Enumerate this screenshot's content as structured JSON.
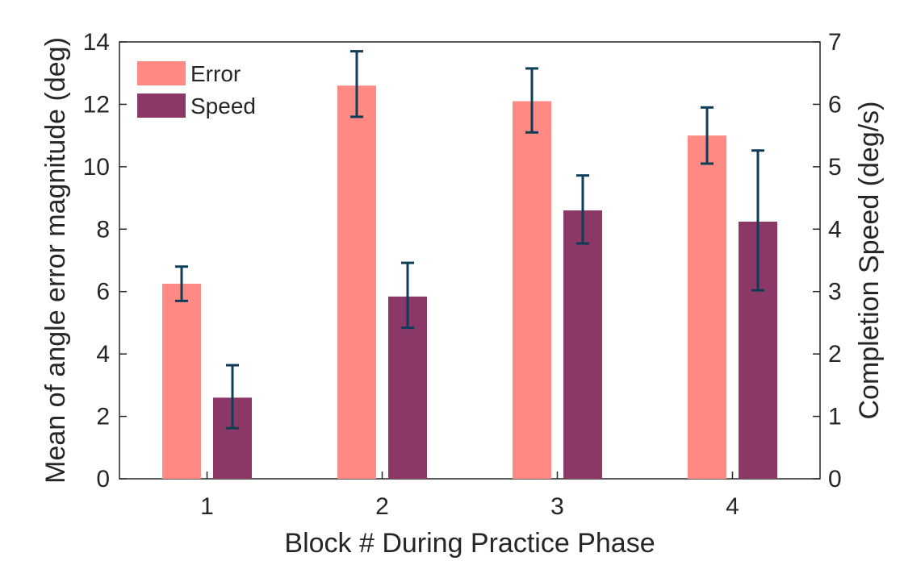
{
  "chart_data": {
    "type": "bar",
    "title": "",
    "xlabel": "Block # During Practice Phase",
    "ylabel": "Mean of angle error magnitude (deg)",
    "ylabel_right": "Completion Speed (deg/s)",
    "categories": [
      "1",
      "2",
      "3",
      "4"
    ],
    "ylim": [
      0,
      14
    ],
    "ylim_right": [
      0,
      7
    ],
    "yticks": [
      "0",
      "2",
      "4",
      "6",
      "8",
      "10",
      "12",
      "14"
    ],
    "yticks_right": [
      "0",
      "1",
      "2",
      "3",
      "4",
      "5",
      "6",
      "7"
    ],
    "grid": false,
    "legend_position": "top-left",
    "series": [
      {
        "name": "Error",
        "axis": "left",
        "color": "#FF8A84",
        "values": [
          6.25,
          12.6,
          12.1,
          11.0
        ],
        "error_low": [
          5.7,
          11.6,
          11.1,
          10.1
        ],
        "error_high": [
          6.8,
          13.7,
          13.15,
          11.9
        ]
      },
      {
        "name": "Speed",
        "axis": "right",
        "color": "#8B3866",
        "values": [
          1.3,
          2.92,
          4.3,
          4.12
        ],
        "error_low": [
          0.81,
          2.42,
          3.77,
          3.02
        ],
        "error_high": [
          1.82,
          3.46,
          4.86,
          5.26
        ]
      }
    ],
    "errorbar_color": "#0E3D57"
  }
}
